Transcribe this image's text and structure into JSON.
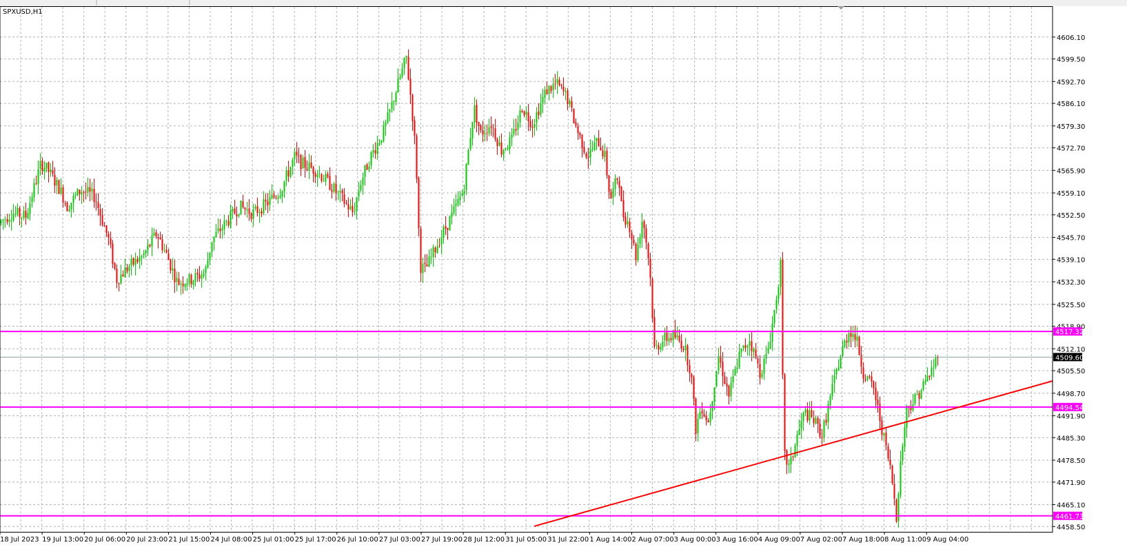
{
  "chart_data": {
    "type": "candlestick",
    "symbol_label": "SPXUSD,H1",
    "price_axis": {
      "ticks": [
        "4606.10",
        "4599.50",
        "4592.70",
        "4586.10",
        "4579.30",
        "4572.70",
        "4565.90",
        "4559.10",
        "4552.50",
        "4545.70",
        "4539.10",
        "4532.30",
        "4525.50",
        "4518.90",
        "4512.10",
        "4505.50",
        "4498.70",
        "4491.90",
        "4485.30",
        "4478.50",
        "4471.90",
        "4465.10",
        "4458.50"
      ],
      "range": [
        4456.9,
        4615.2
      ]
    },
    "time_axis": {
      "ticks": [
        "18 Jul 2023",
        "19 Jul 13:00",
        "20 Jul 06:00",
        "20 Jul 23:00",
        "21 Jul 15:00",
        "24 Jul 08:00",
        "25 Jul 01:00",
        "25 Jul 17:00",
        "26 Jul 10:00",
        "27 Jul 03:00",
        "27 Jul 19:00",
        "28 Jul 12:00",
        "31 Jul 05:00",
        "31 Jul 22:00",
        "1 Aug 14:00",
        "2 Aug 07:00",
        "3 Aug 00:00",
        "3 Aug 16:00",
        "4 Aug 09:00",
        "7 Aug 02:00",
        "7 Aug 18:00",
        "8 Aug 11:00",
        "9 Aug 04:00"
      ]
    },
    "grid": true,
    "colors": {
      "bull": "#00cc00",
      "bear": "#ff0000",
      "level": "#ff00ff",
      "trend": "#ff0000",
      "last": "#000000"
    },
    "horizontal_levels": [
      {
        "price": 4517.32,
        "label": "4517.32"
      },
      {
        "price": 4494.54,
        "label": "4494.54"
      },
      {
        "price": 4461.73,
        "label": "4461.73"
      }
    ],
    "last_price": {
      "price": 4509.6,
      "label": "4509.60"
    },
    "trendline": {
      "from": {
        "bar": 775,
        "price": 4458.6
      },
      "to": {
        "bar": 1527,
        "price": 4502.4
      }
    },
    "path_keypoints": [
      [
        0,
        4550
      ],
      [
        20,
        4553
      ],
      [
        40,
        4552
      ],
      [
        62,
        4568
      ],
      [
        72,
        4566
      ],
      [
        90,
        4560
      ],
      [
        100,
        4555
      ],
      [
        120,
        4560
      ],
      [
        140,
        4558
      ],
      [
        160,
        4545
      ],
      [
        172,
        4533
      ],
      [
        190,
        4537
      ],
      [
        210,
        4540
      ],
      [
        230,
        4547
      ],
      [
        245,
        4540
      ],
      [
        260,
        4532
      ],
      [
        280,
        4533
      ],
      [
        300,
        4535
      ],
      [
        310,
        4545
      ],
      [
        330,
        4550
      ],
      [
        350,
        4555
      ],
      [
        370,
        4553
      ],
      [
        390,
        4556
      ],
      [
        410,
        4560
      ],
      [
        430,
        4570
      ],
      [
        440,
        4568
      ],
      [
        460,
        4566
      ],
      [
        480,
        4562
      ],
      [
        500,
        4557
      ],
      [
        515,
        4553
      ],
      [
        525,
        4562
      ],
      [
        540,
        4570
      ],
      [
        560,
        4578
      ],
      [
        580,
        4592
      ],
      [
        592,
        4600
      ],
      [
        600,
        4585
      ],
      [
        606,
        4570
      ],
      [
        612,
        4537
      ],
      [
        620,
        4536
      ],
      [
        640,
        4545
      ],
      [
        660,
        4553
      ],
      [
        675,
        4560
      ],
      [
        690,
        4585
      ],
      [
        700,
        4577
      ],
      [
        715,
        4580
      ],
      [
        730,
        4572
      ],
      [
        745,
        4575
      ],
      [
        760,
        4585
      ],
      [
        775,
        4580
      ],
      [
        795,
        4590
      ],
      [
        810,
        4592
      ],
      [
        825,
        4588
      ],
      [
        840,
        4578
      ],
      [
        855,
        4570
      ],
      [
        870,
        4575
      ],
      [
        880,
        4570
      ],
      [
        888,
        4557
      ],
      [
        900,
        4565
      ],
      [
        905,
        4553
      ],
      [
        915,
        4550
      ],
      [
        925,
        4540
      ],
      [
        935,
        4552
      ],
      [
        945,
        4537
      ],
      [
        952,
        4512
      ],
      [
        965,
        4515
      ],
      [
        980,
        4516
      ],
      [
        995,
        4513
      ],
      [
        1005,
        4505
      ],
      [
        1012,
        4488
      ],
      [
        1020,
        4495
      ],
      [
        1030,
        4490
      ],
      [
        1045,
        4510
      ],
      [
        1060,
        4498
      ],
      [
        1075,
        4510
      ],
      [
        1090,
        4515
      ],
      [
        1105,
        4505
      ],
      [
        1115,
        4510
      ],
      [
        1125,
        4522
      ],
      [
        1135,
        4537
      ],
      [
        1140,
        4480
      ],
      [
        1148,
        4476
      ],
      [
        1158,
        4485
      ],
      [
        1170,
        4493
      ],
      [
        1185,
        4490
      ],
      [
        1195,
        4486
      ],
      [
        1210,
        4500
      ],
      [
        1222,
        4510
      ],
      [
        1235,
        4518
      ],
      [
        1245,
        4515
      ],
      [
        1255,
        4505
      ],
      [
        1270,
        4500
      ],
      [
        1285,
        4485
      ],
      [
        1295,
        4475
      ],
      [
        1303,
        4462
      ],
      [
        1310,
        4480
      ],
      [
        1318,
        4494
      ],
      [
        1330,
        4497
      ],
      [
        1345,
        4502
      ],
      [
        1355,
        4506
      ],
      [
        1362,
        4509.6
      ]
    ]
  }
}
